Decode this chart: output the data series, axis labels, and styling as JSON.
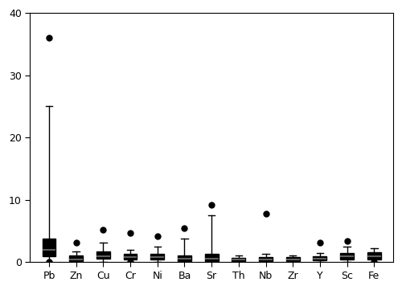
{
  "categories": [
    "Pb",
    "Zn",
    "Cu",
    "Cr",
    "Ni",
    "Ba",
    "Sr",
    "Th",
    "Nb",
    "Zr",
    "Y",
    "Sc",
    "Fe"
  ],
  "boxes": {
    "Pb": {
      "q1": 1.0,
      "median": 2.0,
      "q3": 3.8,
      "whislo": 0.05,
      "whishi": 25.0,
      "fliers_above": [
        36.0
      ],
      "fliers_below": [
        0.0
      ]
    },
    "Zn": {
      "q1": 0.2,
      "median": 0.5,
      "q3": 1.1,
      "whislo": 0.0,
      "whishi": 1.8,
      "fliers_above": [
        3.2
      ],
      "fliers_below": []
    },
    "Cu": {
      "q1": 0.6,
      "median": 1.0,
      "q3": 1.7,
      "whislo": 0.0,
      "whishi": 3.2,
      "fliers_above": [
        5.2
      ],
      "fliers_below": []
    },
    "Cr": {
      "q1": 0.4,
      "median": 0.8,
      "q3": 1.3,
      "whislo": 0.0,
      "whishi": 2.0,
      "fliers_above": [
        4.7
      ],
      "fliers_below": [
        0.0
      ]
    },
    "Ni": {
      "q1": 0.4,
      "median": 0.8,
      "q3": 1.4,
      "whislo": 0.0,
      "whishi": 2.5,
      "fliers_above": [
        4.2
      ],
      "fliers_below": []
    },
    "Ba": {
      "q1": 0.2,
      "median": 0.6,
      "q3": 1.1,
      "whislo": 0.0,
      "whishi": 3.8,
      "fliers_above": [
        5.5
      ],
      "fliers_below": []
    },
    "Sr": {
      "q1": 0.2,
      "median": 0.6,
      "q3": 1.4,
      "whislo": 0.0,
      "whishi": 7.5,
      "fliers_above": [
        9.2
      ],
      "fliers_below": []
    },
    "Th": {
      "q1": 0.2,
      "median": 0.4,
      "q3": 0.7,
      "whislo": 0.0,
      "whishi": 1.1,
      "fliers_above": [],
      "fliers_below": []
    },
    "Nb": {
      "q1": 0.15,
      "median": 0.4,
      "q3": 0.8,
      "whislo": 0.0,
      "whishi": 1.4,
      "fliers_above": [
        7.8
      ],
      "fliers_below": []
    },
    "Zr": {
      "q1": 0.2,
      "median": 0.5,
      "q3": 0.8,
      "whislo": 0.0,
      "whishi": 1.1,
      "fliers_above": [],
      "fliers_below": []
    },
    "Y": {
      "q1": 0.3,
      "median": 0.6,
      "q3": 1.0,
      "whislo": 0.0,
      "whishi": 1.5,
      "fliers_above": [
        3.2
      ],
      "fliers_below": []
    },
    "Sc": {
      "q1": 0.5,
      "median": 0.9,
      "q3": 1.5,
      "whislo": 0.0,
      "whishi": 2.5,
      "fliers_above": [
        3.4
      ],
      "fliers_below": []
    },
    "Fe": {
      "q1": 0.5,
      "median": 1.0,
      "q3": 1.6,
      "whislo": 0.05,
      "whishi": 2.3,
      "fliers_above": [],
      "fliers_below": [
        0.0
      ]
    }
  },
  "ylim": [
    0,
    40
  ],
  "yticks": [
    0,
    10,
    20,
    30,
    40
  ],
  "box_facecolor": "#d0d0d0",
  "median_color": "#606060",
  "line_color": "#000000",
  "flier_color": "#000000",
  "background_color": "#ffffff",
  "figsize": [
    5.0,
    3.61
  ],
  "dpi": 100
}
